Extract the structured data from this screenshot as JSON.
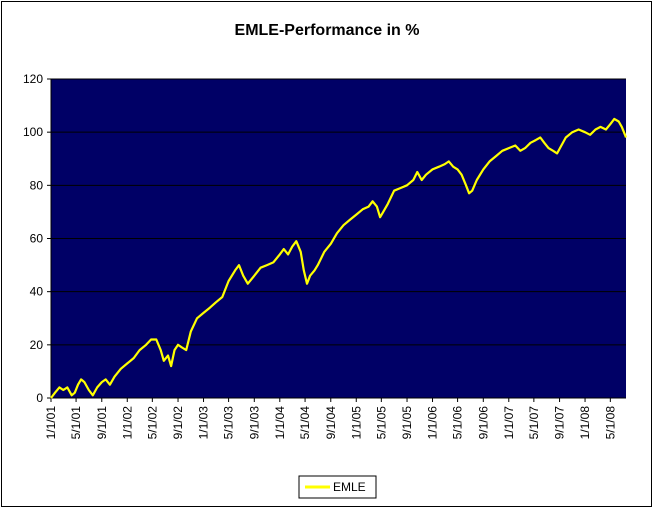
{
  "chart_data": {
    "type": "line",
    "title": "EMLE-Performance in %",
    "xlabel": "",
    "ylabel": "",
    "ylim": [
      0,
      120
    ],
    "yticks": [
      "0",
      "20",
      "40",
      "60",
      "80",
      "100",
      "120"
    ],
    "x_tick_labels": [
      "1/1/01",
      "5/1/01",
      "9/1/01",
      "1/1/02",
      "5/1/02",
      "9/1/02",
      "1/1/03",
      "5/1/03",
      "9/1/03",
      "1/1/04",
      "5/1/04",
      "9/1/04",
      "1/1/05",
      "5/1/05",
      "9/1/05",
      "1/1/06",
      "5/1/06",
      "9/1/06",
      "1/1/07",
      "5/1/07",
      "9/1/07",
      "1/1/08",
      "5/1/08"
    ],
    "xlim": [
      "2001-01-01",
      "2008-07-15"
    ],
    "grid": "horizontal",
    "plot_background": "#000066",
    "gridline_color": "#000000",
    "legend_placement": "bottom",
    "series": [
      {
        "name": "EMLE",
        "color": "#ffff00",
        "points": [
          [
            "2001-01-01",
            0
          ],
          [
            "2001-01-20",
            2
          ],
          [
            "2001-02-10",
            4
          ],
          [
            "2001-03-01",
            3
          ],
          [
            "2001-03-20",
            4
          ],
          [
            "2001-04-10",
            1
          ],
          [
            "2001-04-25",
            2
          ],
          [
            "2001-05-10",
            5
          ],
          [
            "2001-05-25",
            7
          ],
          [
            "2001-06-10",
            6
          ],
          [
            "2001-07-01",
            3
          ],
          [
            "2001-07-20",
            1
          ],
          [
            "2001-08-10",
            4
          ],
          [
            "2001-09-01",
            6
          ],
          [
            "2001-09-20",
            7
          ],
          [
            "2001-10-10",
            5
          ],
          [
            "2001-11-01",
            8
          ],
          [
            "2001-12-01",
            11
          ],
          [
            "2002-01-01",
            13
          ],
          [
            "2002-02-01",
            15
          ],
          [
            "2002-03-01",
            18
          ],
          [
            "2002-04-01",
            20
          ],
          [
            "2002-04-25",
            22
          ],
          [
            "2002-05-20",
            22
          ],
          [
            "2002-06-10",
            18
          ],
          [
            "2002-06-25",
            14
          ],
          [
            "2002-07-15",
            16
          ],
          [
            "2002-07-30",
            12
          ],
          [
            "2002-08-15",
            18
          ],
          [
            "2002-09-01",
            20
          ],
          [
            "2002-09-20",
            19
          ],
          [
            "2002-10-10",
            18
          ],
          [
            "2002-11-01",
            25
          ],
          [
            "2002-12-01",
            30
          ],
          [
            "2003-01-01",
            32
          ],
          [
            "2003-02-01",
            34
          ],
          [
            "2003-03-01",
            36
          ],
          [
            "2003-04-01",
            38
          ],
          [
            "2003-05-01",
            44
          ],
          [
            "2003-06-01",
            48
          ],
          [
            "2003-06-20",
            50
          ],
          [
            "2003-07-10",
            46
          ],
          [
            "2003-08-01",
            43
          ],
          [
            "2003-09-01",
            46
          ],
          [
            "2003-10-01",
            49
          ],
          [
            "2003-11-01",
            50
          ],
          [
            "2003-12-01",
            51
          ],
          [
            "2004-01-01",
            54
          ],
          [
            "2004-01-20",
            56
          ],
          [
            "2004-02-10",
            54
          ],
          [
            "2004-03-01",
            57
          ],
          [
            "2004-03-20",
            59
          ],
          [
            "2004-04-10",
            55
          ],
          [
            "2004-04-25",
            48
          ],
          [
            "2004-05-10",
            43
          ],
          [
            "2004-05-25",
            46
          ],
          [
            "2004-06-15",
            48
          ],
          [
            "2004-07-01",
            50
          ],
          [
            "2004-08-01",
            55
          ],
          [
            "2004-09-01",
            58
          ],
          [
            "2004-10-01",
            62
          ],
          [
            "2004-11-01",
            65
          ],
          [
            "2004-12-01",
            67
          ],
          [
            "2005-01-01",
            69
          ],
          [
            "2005-02-01",
            71
          ],
          [
            "2005-03-01",
            72
          ],
          [
            "2005-03-20",
            74
          ],
          [
            "2005-04-10",
            72
          ],
          [
            "2005-04-25",
            68
          ],
          [
            "2005-05-10",
            70
          ],
          [
            "2005-06-01",
            73
          ],
          [
            "2005-07-01",
            78
          ],
          [
            "2005-08-01",
            79
          ],
          [
            "2005-09-01",
            80
          ],
          [
            "2005-10-01",
            82
          ],
          [
            "2005-10-20",
            85
          ],
          [
            "2005-11-10",
            82
          ],
          [
            "2005-12-01",
            84
          ],
          [
            "2006-01-01",
            86
          ],
          [
            "2006-02-01",
            87
          ],
          [
            "2006-03-01",
            88
          ],
          [
            "2006-03-20",
            89
          ],
          [
            "2006-04-10",
            87
          ],
          [
            "2006-05-01",
            86
          ],
          [
            "2006-05-20",
            84
          ],
          [
            "2006-06-10",
            80
          ],
          [
            "2006-06-25",
            77
          ],
          [
            "2006-07-10",
            78
          ],
          [
            "2006-08-01",
            82
          ],
          [
            "2006-09-01",
            86
          ],
          [
            "2006-10-01",
            89
          ],
          [
            "2006-11-01",
            91
          ],
          [
            "2006-12-01",
            93
          ],
          [
            "2007-01-01",
            94
          ],
          [
            "2007-02-01",
            95
          ],
          [
            "2007-02-25",
            93
          ],
          [
            "2007-03-20",
            94
          ],
          [
            "2007-04-15",
            96
          ],
          [
            "2007-05-10",
            97
          ],
          [
            "2007-06-01",
            98
          ],
          [
            "2007-06-20",
            96
          ],
          [
            "2007-07-10",
            94
          ],
          [
            "2007-08-01",
            93
          ],
          [
            "2007-08-20",
            92
          ],
          [
            "2007-09-10",
            95
          ],
          [
            "2007-10-01",
            98
          ],
          [
            "2007-11-01",
            100
          ],
          [
            "2007-12-01",
            101
          ],
          [
            "2008-01-01",
            100
          ],
          [
            "2008-01-25",
            99
          ],
          [
            "2008-02-20",
            101
          ],
          [
            "2008-03-15",
            102
          ],
          [
            "2008-04-10",
            101
          ],
          [
            "2008-05-01",
            103
          ],
          [
            "2008-05-20",
            105
          ],
          [
            "2008-06-10",
            104
          ],
          [
            "2008-06-25",
            102
          ],
          [
            "2008-07-10",
            99
          ],
          [
            "2008-07-15",
            98
          ]
        ]
      }
    ]
  }
}
